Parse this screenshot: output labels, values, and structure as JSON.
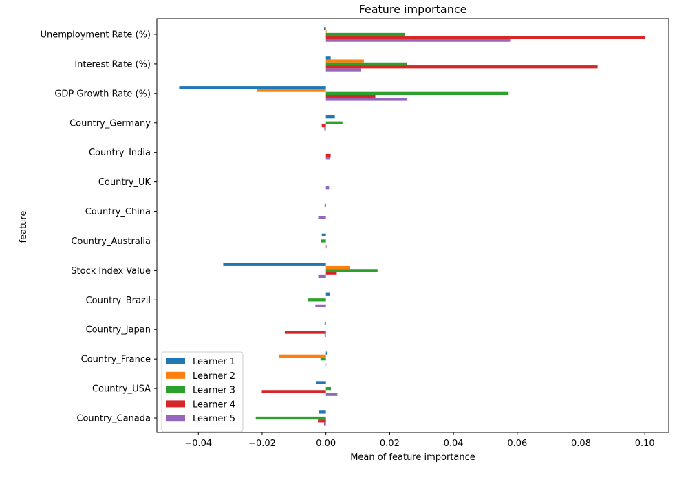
{
  "chart_data": {
    "type": "bar",
    "orientation": "horizontal",
    "title": "Feature importance",
    "xlabel": "Mean of feature importance",
    "ylabel": "feature",
    "xlim": [
      -0.053,
      0.1075
    ],
    "xticks": [
      -0.04,
      -0.02,
      0.0,
      0.02,
      0.04,
      0.06,
      0.08,
      0.1
    ],
    "xtick_labels": [
      "−0.04",
      "−0.02",
      "0.00",
      "0.02",
      "0.04",
      "0.06",
      "0.08",
      "0.10"
    ],
    "grid": false,
    "legend_position": "lower-left",
    "categories": [
      "Unemployment Rate (%)",
      "Interest Rate (%)",
      "GDP Growth Rate (%)",
      "Country_Germany",
      "Country_India",
      "Country_UK",
      "Country_China",
      "Country_Australia",
      "Stock Index Value",
      "Country_Brazil",
      "Country_Japan",
      "Country_France",
      "Country_USA",
      "Country_Canada"
    ],
    "series": [
      {
        "name": "Learner 1",
        "color": "#1f77b4",
        "values": [
          -0.0006,
          0.0015,
          -0.046,
          0.0028,
          0.0,
          0.0,
          -0.0004,
          -0.0013,
          -0.0322,
          0.0012,
          -0.0004,
          0.0005,
          -0.0031,
          -0.0023
        ]
      },
      {
        "name": "Learner 2",
        "color": "#ff7f0e",
        "values": [
          0.0002,
          0.0119,
          -0.0215,
          0.0,
          0.0,
          0.0,
          0.0,
          0.0,
          0.0075,
          0.0,
          0.0,
          -0.0147,
          0.0,
          0.0
        ]
      },
      {
        "name": "Learner 3",
        "color": "#2ca02c",
        "values": [
          0.0247,
          0.0254,
          0.0573,
          0.0052,
          0.0,
          0.0,
          0.0,
          -0.0015,
          0.0162,
          -0.0056,
          0.0,
          -0.0017,
          0.0016,
          -0.022
        ]
      },
      {
        "name": "Learner 4",
        "color": "#d62728",
        "values": [
          0.1001,
          0.0852,
          0.0155,
          -0.0013,
          0.0015,
          0.0,
          0.0,
          0.0,
          0.0034,
          0.0,
          -0.0129,
          0.0,
          -0.0201,
          -0.0025
        ]
      },
      {
        "name": "Learner 5",
        "color": "#9467bd",
        "values": [
          0.058,
          0.011,
          0.0253,
          -0.0005,
          0.0014,
          0.001,
          -0.0024,
          0.0002,
          -0.0024,
          -0.0033,
          -0.0004,
          0.0001,
          0.0036,
          -0.0006
        ]
      }
    ]
  }
}
